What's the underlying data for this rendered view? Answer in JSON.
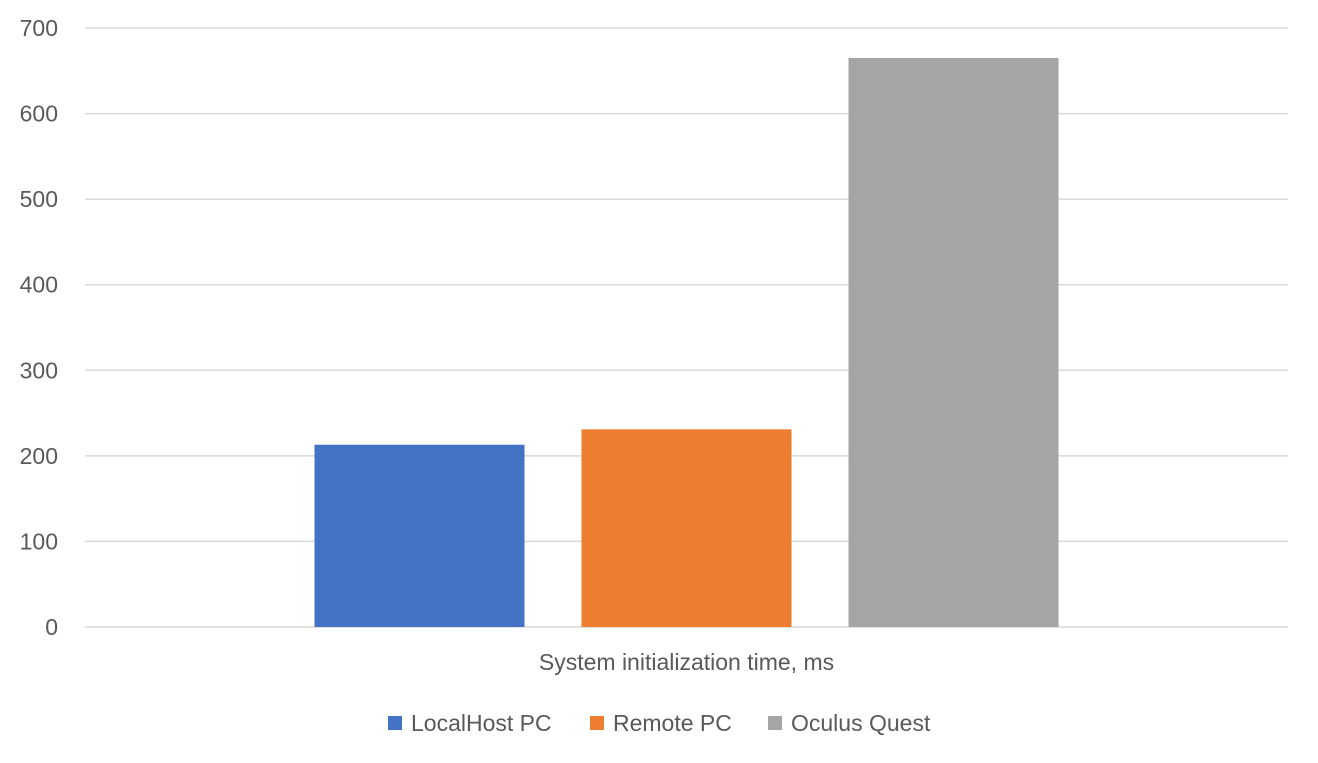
{
  "chart_data": {
    "type": "bar",
    "categories": [
      "System initialization time, ms"
    ],
    "series": [
      {
        "name": "LocalHost PC",
        "values": [
          213
        ],
        "color": "#4472c4"
      },
      {
        "name": "Remote PC",
        "values": [
          231
        ],
        "color": "#ed7d31"
      },
      {
        "name": "Oculus Quest",
        "values": [
          665
        ],
        "color": "#a5a5a5"
      }
    ],
    "title": "",
    "xlabel": "",
    "ylabel": "",
    "ylim": [
      0,
      700
    ],
    "yticks": [
      0,
      100,
      200,
      300,
      400,
      500,
      600,
      700
    ],
    "grid": true,
    "legend_position": "bottom"
  }
}
